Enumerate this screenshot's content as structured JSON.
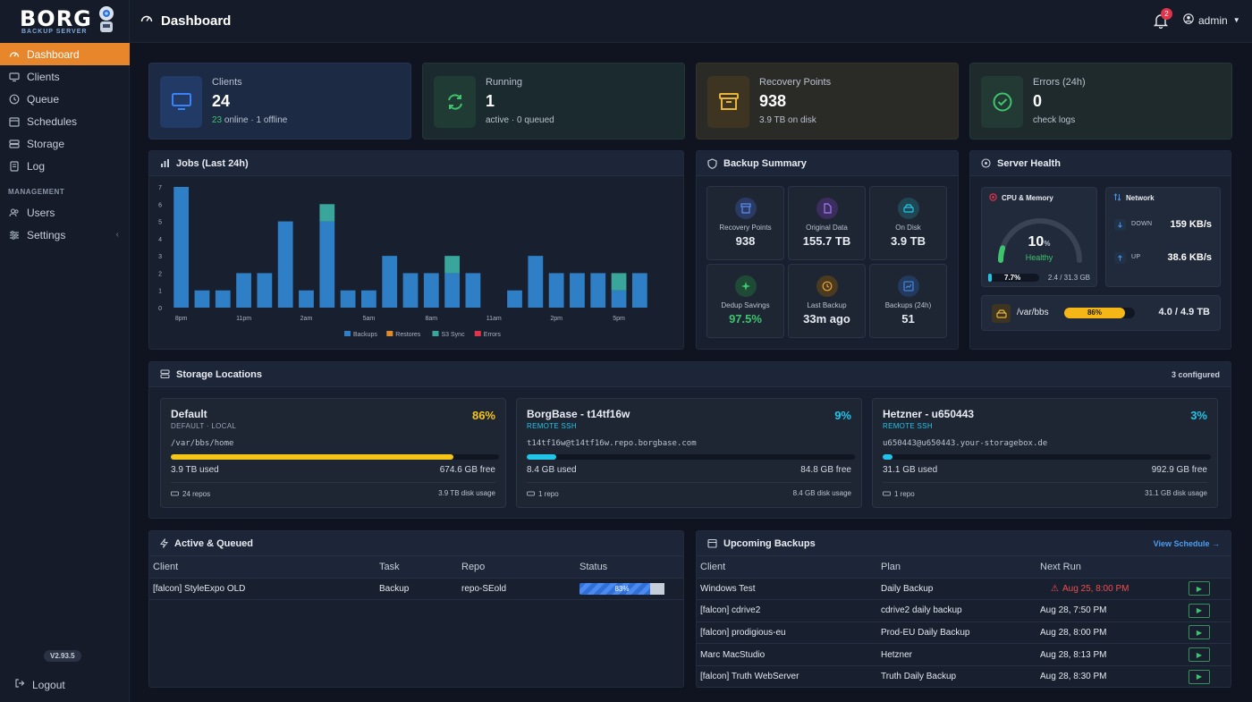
{
  "app": {
    "logo": "BORG",
    "logo_sub": "BACKUP SERVER",
    "version": "V2.93.5",
    "logout": "Logout"
  },
  "nav": {
    "items": [
      {
        "label": "Dashboard",
        "icon": "gauge-icon",
        "active": true
      },
      {
        "label": "Clients",
        "icon": "monitor-icon"
      },
      {
        "label": "Queue",
        "icon": "clock-icon"
      },
      {
        "label": "Schedules",
        "icon": "calendar-icon"
      },
      {
        "label": "Storage",
        "icon": "storage-icon"
      },
      {
        "label": "Log",
        "icon": "log-icon"
      }
    ],
    "section": "MANAGEMENT",
    "mgmt": [
      {
        "label": "Users",
        "icon": "users-icon"
      },
      {
        "label": "Settings",
        "icon": "sliders-icon"
      }
    ]
  },
  "header": {
    "title": "Dashboard",
    "notifications": "2",
    "user": "admin"
  },
  "stats": [
    {
      "label": "Clients",
      "value": "24",
      "sub_green": "23",
      "sub": " online · 1 offline",
      "color": "#2f6fd6"
    },
    {
      "label": "Running",
      "value": "1",
      "sub_green": "",
      "sub": "active · 0 queued",
      "color": "#3ec46d"
    },
    {
      "label": "Recovery Points",
      "value": "938",
      "sub_green": "",
      "sub": "3.9 TB on disk",
      "color": "#e8b43a"
    },
    {
      "label": "Errors (24h)",
      "value": "0",
      "sub_green": "",
      "sub": "check logs",
      "color": "#3ec46d"
    }
  ],
  "jobs": {
    "title": "Jobs (Last 24h)"
  },
  "chart_data": {
    "type": "bar",
    "title": "Jobs (Last 24h)",
    "categories": [
      "8pm",
      "9pm",
      "10pm",
      "11pm",
      "12am",
      "1am",
      "2am",
      "3am",
      "4am",
      "5am",
      "6am",
      "7am",
      "8am",
      "9am",
      "10am",
      "11am",
      "12pm",
      "1pm",
      "2pm",
      "3pm",
      "4pm",
      "5pm",
      "6pm"
    ],
    "tick_labels": [
      "8pm",
      "11pm",
      "2am",
      "5am",
      "8am",
      "11am",
      "2pm",
      "5pm"
    ],
    "series": [
      {
        "name": "Backups",
        "color": "#2f7fc6",
        "values": [
          7,
          1,
          1,
          2,
          2,
          5,
          1,
          5,
          1,
          1,
          3,
          2,
          2,
          2,
          2,
          0,
          1,
          3,
          2,
          2,
          2,
          1,
          2
        ]
      },
      {
        "name": "Restores",
        "color": "#e08a2e",
        "values": [
          0,
          0,
          0,
          0,
          0,
          0,
          0,
          0,
          0,
          0,
          0,
          0,
          0,
          0,
          0,
          0,
          0,
          0,
          0,
          0,
          0,
          0,
          0
        ]
      },
      {
        "name": "S3 Sync",
        "color": "#3aa59a",
        "values": [
          0,
          0,
          0,
          0,
          0,
          0,
          0,
          1,
          0,
          0,
          0,
          0,
          0,
          1,
          0,
          0,
          0,
          0,
          0,
          0,
          0,
          1,
          0
        ]
      },
      {
        "name": "Errors",
        "color": "#e0344b",
        "values": [
          0,
          0,
          0,
          0,
          0,
          0,
          0,
          0,
          0,
          0,
          0,
          0,
          0,
          0,
          0,
          0,
          0,
          0,
          0,
          0,
          0,
          0,
          0
        ]
      }
    ],
    "ylim": [
      0,
      7
    ],
    "yticks": [
      0,
      1,
      2,
      3,
      4,
      5,
      6,
      7
    ],
    "stacked": true,
    "legend": "bottom",
    "grid": false
  },
  "summary": {
    "title": "Backup Summary",
    "tiles": [
      {
        "label": "Recovery Points",
        "value": "938",
        "color": "#3b6fd8"
      },
      {
        "label": "Original Data",
        "value": "155.7 TB",
        "color": "#8b5cf6"
      },
      {
        "label": "On Disk",
        "value": "3.9 TB",
        "color": "#22b8cf"
      },
      {
        "label": "Dedup Savings",
        "value": "97.5%",
        "color": "#3ec46d"
      },
      {
        "label": "Last Backup",
        "value": "33m ago",
        "color": "#e8a23a"
      },
      {
        "label": "Backups (24h)",
        "value": "51",
        "color": "#4c8fe6"
      }
    ]
  },
  "health": {
    "title": "Server Health",
    "cpu_title": "CPU & Memory",
    "cpu_value": "10",
    "cpu_unit": "%",
    "cpu_status": "Healthy",
    "cpu_fraction": 0.1,
    "mem_pct": "7.7%",
    "mem_fraction": 0.077,
    "mem_text": "2.4 / 31.3 GB",
    "net_title": "Network",
    "down_label": "DOWN",
    "down_value": "159 KB/s",
    "up_label": "UP",
    "up_value": "38.6 KB/s",
    "disk_path": "/var/bbs",
    "disk_pct": "86%",
    "disk_fraction": 0.86,
    "disk_text": "4.0 / 4.9 TB"
  },
  "storage": {
    "title": "Storage Locations",
    "count": "3 configured",
    "locations": [
      {
        "name": "Default",
        "type": "DEFAULT · LOCAL",
        "path": "/var/bbs/home",
        "pct": "86%",
        "fraction": 0.86,
        "color": "#f5c518",
        "used": "3.9 TB used",
        "free": "674.6 GB free",
        "repos": "24 repos",
        "disk": "3.9 TB disk usage"
      },
      {
        "name": "BorgBase - t14tf16w",
        "type": "REMOTE SSH",
        "path": "t14tf16w@t14tf16w.repo.borgbase.com",
        "pct": "9%",
        "fraction": 0.09,
        "color": "#22c5e8",
        "used": "8.4 GB used",
        "free": "84.8 GB free",
        "repos": "1 repo",
        "disk": "8.4 GB disk usage"
      },
      {
        "name": "Hetzner - u650443",
        "type": "REMOTE SSH",
        "path": "u650443@u650443.your-storagebox.de",
        "pct": "3%",
        "fraction": 0.03,
        "color": "#22c5e8",
        "used": "31.1 GB used",
        "free": "992.9 GB free",
        "repos": "1 repo",
        "disk": "31.1 GB disk usage"
      }
    ]
  },
  "active": {
    "title": "Active & Queued",
    "headers": [
      "Client",
      "Task",
      "Repo",
      "Status"
    ],
    "rows": [
      {
        "client": "[falcon] StyleExpo OLD",
        "task": "Backup",
        "repo": "repo-SEold",
        "status": "83%",
        "fraction": 0.83
      }
    ]
  },
  "upcoming": {
    "title": "Upcoming Backups",
    "link": "View Schedule →",
    "headers": [
      "Client",
      "Plan",
      "Next Run"
    ],
    "rows": [
      {
        "client": "Windows Test",
        "plan": "Daily Backup",
        "next": "Aug 25, 8:00 PM",
        "overdue": true
      },
      {
        "client": "[falcon] cdrive2",
        "plan": "cdrive2 daily backup",
        "next": "Aug 28, 7:50 PM",
        "overdue": false
      },
      {
        "client": "[falcon] prodigious-eu",
        "plan": "Prod-EU Daily Backup",
        "next": "Aug 28, 8:00 PM",
        "overdue": false
      },
      {
        "client": "Marc MacStudio",
        "plan": "Hetzner",
        "next": "Aug 28, 8:13 PM",
        "overdue": false
      },
      {
        "client": "[falcon] Truth WebServer",
        "plan": "Truth Daily Backup",
        "next": "Aug 28, 8:30 PM",
        "overdue": false
      }
    ]
  }
}
